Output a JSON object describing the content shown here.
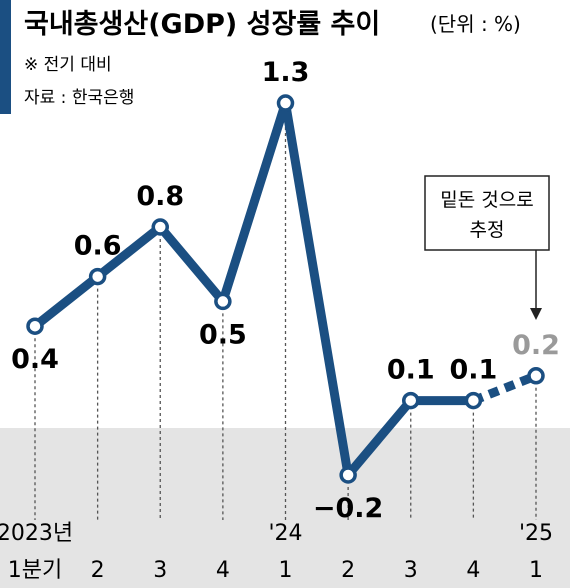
{
  "header": {
    "title": "국내총생산(GDP) 성장률 추이",
    "unit": "(단위 : %)",
    "note": "※ 전기 대비",
    "source": "자료 : 한국은행"
  },
  "annotation": {
    "lines": [
      "밑돈 것으로",
      "추정"
    ]
  },
  "colors": {
    "line": "#1b4f82",
    "estimate_label": "#9a9a9a",
    "band": "#e4e4e4",
    "text": "#1a1a1a"
  },
  "chart_data": {
    "type": "line",
    "title": "국내총생산(GDP) 성장률 추이",
    "categories": [
      "2023년 1분기",
      "2023년 2",
      "2023년 3",
      "2023년 4",
      "'24 1",
      "'24 2",
      "'24 3",
      "'24 4",
      "'25 1"
    ],
    "x_tick_labels_top": [
      "2023년",
      "",
      "",
      "",
      "'24",
      "",
      "",
      "",
      "'25"
    ],
    "x_tick_labels_bottom": [
      "1분기",
      "2",
      "3",
      "4",
      "1",
      "2",
      "3",
      "4",
      "1"
    ],
    "values": [
      0.4,
      0.6,
      0.8,
      0.5,
      1.3,
      -0.2,
      0.1,
      0.1,
      0.2
    ],
    "value_labels": [
      "0.4",
      "0.6",
      "0.8",
      "0.5",
      "1.3",
      "−0.2",
      "0.1",
      "0.1",
      "0.2"
    ],
    "estimated_index": 8,
    "ylim": [
      -0.2,
      1.3
    ],
    "grid": false,
    "legend": "none"
  }
}
